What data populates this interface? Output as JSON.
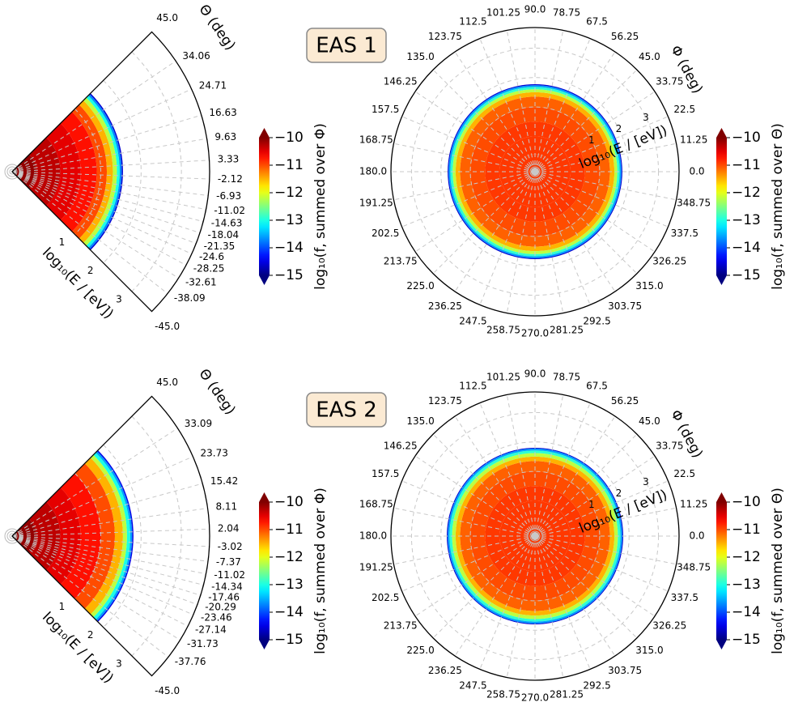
{
  "chart_data": [
    {
      "type": "polar-wedge",
      "title": "EAS 1",
      "theta_label": "Θ (deg)",
      "r_label": "log₁₀(E / [eV])",
      "thetalim": [
        -45,
        45
      ],
      "thetaticks": [
        {
          "value": 45,
          "label": "45.0"
        },
        34.06,
        24.71,
        16.63,
        9.63,
        3.33,
        -2.12,
        -6.93,
        -11.02,
        -14.63,
        -18.04,
        -21.35,
        -24.6,
        -28.25,
        -32.61,
        -38.09,
        {
          "value": -45,
          "label": "-45.0"
        }
      ],
      "rlim": [
        -1.2,
        3.7
      ],
      "rticks": [
        1,
        2,
        3
      ],
      "r_bins": [
        -1.2,
        -0.6,
        0,
        0.5,
        0.9,
        1.15,
        1.3,
        1.4,
        1.47,
        1.52,
        1.55
      ],
      "values": [
        -10.1,
        -10.3,
        -10.5,
        -10.7,
        -11.0,
        -11.5,
        -12.2,
        -13.0,
        -13.7,
        -14.6
      ],
      "colormap": "jet",
      "clim": [
        -15,
        -10
      ],
      "grid": true,
      "colorbar_label": "log₁₀(f, summed over Φ)",
      "colorbar_ticks": [
        {
          "value": -10,
          "label": "−10"
        },
        {
          "value": -11,
          "label": "−11"
        },
        {
          "value": -12,
          "label": "−12"
        },
        {
          "value": -13,
          "label": "−13"
        },
        {
          "value": -14,
          "label": "−14"
        },
        {
          "value": -15,
          "label": "−15"
        }
      ]
    },
    {
      "type": "polar",
      "theta_label": "Φ (deg)",
      "r_label": "log₁₀(E / [eV])",
      "thetaticks": [
        {
          "value": 0,
          "label": "0.0"
        },
        11.25,
        22.5,
        33.75,
        {
          "value": 45,
          "label": "45.0"
        },
        56.25,
        67.5,
        78.75,
        {
          "value": 90,
          "label": "90.0"
        },
        101.25,
        112.5,
        123.75,
        {
          "value": 135,
          "label": "135.0"
        },
        146.25,
        157.5,
        168.75,
        {
          "value": 180,
          "label": "180.0"
        },
        191.25,
        202.5,
        213.75,
        {
          "value": 225,
          "label": "225.0"
        },
        236.25,
        247.5,
        258.75,
        {
          "value": 270,
          "label": "270.0"
        },
        281.25,
        292.5,
        303.75,
        {
          "value": 315,
          "label": "315.0"
        },
        326.25,
        337.5,
        348.75
      ],
      "rlim": [
        -1.2,
        3.7
      ],
      "rticks": [
        1,
        2,
        3
      ],
      "r_bins": [
        -1.2,
        -0.6,
        0,
        0.5,
        1.0,
        1.35,
        1.5,
        1.6,
        1.68,
        1.74,
        1.77
      ],
      "values": [
        -10.9,
        -10.9,
        -10.9,
        -11.0,
        -11.1,
        -11.5,
        -12.2,
        -12.9,
        -13.6,
        -14.6
      ],
      "colormap": "jet",
      "clim": [
        -15,
        -10
      ],
      "grid": true,
      "colorbar_label": "log₁₀(f, summed over Θ)",
      "colorbar_ticks": [
        {
          "value": -10,
          "label": "−10"
        },
        {
          "value": -11,
          "label": "−11"
        },
        {
          "value": -12,
          "label": "−12"
        },
        {
          "value": -13,
          "label": "−13"
        },
        {
          "value": -14,
          "label": "−14"
        },
        {
          "value": -15,
          "label": "−15"
        }
      ]
    },
    {
      "type": "polar-wedge",
      "title": "EAS 2",
      "theta_label": "Θ (deg)",
      "r_label": "log₁₀(E / [eV])",
      "thetalim": [
        -45,
        45
      ],
      "thetaticks": [
        {
          "value": 45,
          "label": "45.0"
        },
        33.09,
        23.73,
        15.42,
        8.11,
        2.04,
        -3.02,
        -7.37,
        -11.02,
        -14.34,
        -17.46,
        -20.29,
        -23.46,
        -27.14,
        -31.73,
        -37.76,
        {
          "value": -45,
          "label": "-45.0"
        }
      ],
      "rlim": [
        -1.2,
        3.7
      ],
      "rticks": [
        1,
        2,
        3
      ],
      "r_bins": [
        -1.2,
        -0.6,
        0,
        0.5,
        1.0,
        1.35,
        1.55,
        1.65,
        1.73,
        1.78,
        1.81
      ],
      "values": [
        -10.1,
        -10.3,
        -10.5,
        -10.7,
        -11.0,
        -11.5,
        -12.2,
        -13.0,
        -13.6,
        -14.5
      ],
      "colormap": "jet",
      "clim": [
        -15,
        -10
      ],
      "grid": true,
      "colorbar_label": "log₁₀(f, summed over Φ)",
      "colorbar_ticks": [
        {
          "value": -10,
          "label": "−10"
        },
        {
          "value": -11,
          "label": "−11"
        },
        {
          "value": -12,
          "label": "−12"
        },
        {
          "value": -13,
          "label": "−13"
        },
        {
          "value": -14,
          "label": "−14"
        },
        {
          "value": -15,
          "label": "−15"
        }
      ]
    },
    {
      "type": "polar",
      "theta_label": "Φ (deg)",
      "r_label": "log₁₀(E / [eV])",
      "thetaticks": [
        {
          "value": 0,
          "label": "0.0"
        },
        11.25,
        22.5,
        33.75,
        {
          "value": 45,
          "label": "45.0"
        },
        56.25,
        67.5,
        78.75,
        {
          "value": 90,
          "label": "90.0"
        },
        101.25,
        112.5,
        123.75,
        {
          "value": 135,
          "label": "135.0"
        },
        146.25,
        157.5,
        168.75,
        {
          "value": 180,
          "label": "180.0"
        },
        191.25,
        202.5,
        213.75,
        {
          "value": 225,
          "label": "225.0"
        },
        236.25,
        247.5,
        258.75,
        {
          "value": 270,
          "label": "270.0"
        },
        281.25,
        292.5,
        303.75,
        {
          "value": 315,
          "label": "315.0"
        },
        326.25,
        337.5,
        348.75
      ],
      "rlim": [
        -1.2,
        3.7
      ],
      "rticks": [
        1,
        2,
        3
      ],
      "r_bins": [
        -1.2,
        -0.6,
        0,
        0.5,
        1.0,
        1.35,
        1.5,
        1.62,
        1.71,
        1.77,
        1.8
      ],
      "values": [
        -10.9,
        -10.9,
        -10.9,
        -11.0,
        -11.1,
        -11.5,
        -12.2,
        -12.9,
        -13.6,
        -14.6
      ],
      "colormap": "jet",
      "clim": [
        -15,
        -10
      ],
      "grid": true,
      "colorbar_label": "log₁₀(f, summed over Θ)",
      "colorbar_ticks": [
        {
          "value": -10,
          "label": "−10"
        },
        {
          "value": -11,
          "label": "−11"
        },
        {
          "value": -12,
          "label": "−12"
        },
        {
          "value": -13,
          "label": "−13"
        },
        {
          "value": -14,
          "label": "−14"
        },
        {
          "value": -15,
          "label": "−15"
        }
      ]
    }
  ]
}
